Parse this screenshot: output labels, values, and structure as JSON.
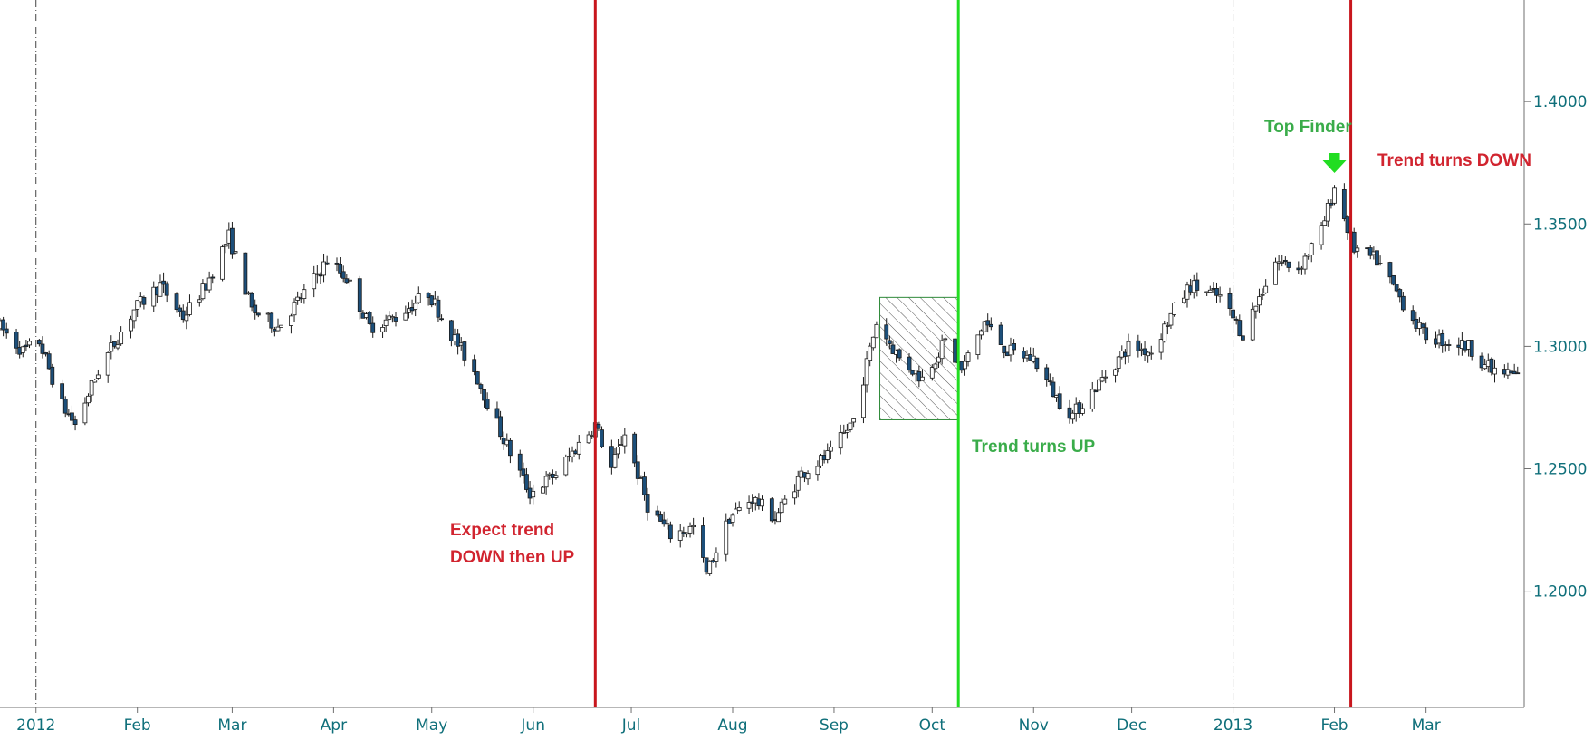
{
  "chart_data": {
    "type": "candlestick",
    "title": "",
    "xlabel": "",
    "ylabel": "",
    "x_range": [
      "2011-12-21",
      "2013-03-31"
    ],
    "ylim": [
      1.1525,
      1.4415
    ],
    "y_ticks": [
      1.2,
      1.25,
      1.3,
      1.35,
      1.4
    ],
    "y_tick_labels": [
      "1.2000",
      "1.2500",
      "1.3000",
      "1.3500",
      "1.4000"
    ],
    "y_axis_position": "right",
    "x_ticks": [
      {
        "date": "2012-01-01",
        "label": "2012"
      },
      {
        "date": "2012-02-01",
        "label": "Feb"
      },
      {
        "date": "2012-03-01",
        "label": "Mar"
      },
      {
        "date": "2012-04-01",
        "label": "Apr"
      },
      {
        "date": "2012-05-01",
        "label": "May"
      },
      {
        "date": "2012-06-01",
        "label": "Jun"
      },
      {
        "date": "2012-07-01",
        "label": "Jul"
      },
      {
        "date": "2012-08-01",
        "label": "Aug"
      },
      {
        "date": "2012-09-01",
        "label": "Sep"
      },
      {
        "date": "2012-10-01",
        "label": "Oct"
      },
      {
        "date": "2012-11-01",
        "label": "Nov"
      },
      {
        "date": "2012-12-01",
        "label": "Dec"
      },
      {
        "date": "2013-01-01",
        "label": "2013"
      },
      {
        "date": "2013-02-01",
        "label": "Feb"
      },
      {
        "date": "2013-03-01",
        "label": "Mar"
      }
    ],
    "year_separators": [
      "2012-01-01",
      "2013-01-01"
    ],
    "grid": false,
    "price_path": [
      [
        "2011-12-21",
        1.308
      ],
      [
        "2011-12-28",
        1.298
      ],
      [
        "2012-01-02",
        1.302
      ],
      [
        "2012-01-09",
        1.276
      ],
      [
        "2012-01-13",
        1.268
      ],
      [
        "2012-01-20",
        1.29
      ],
      [
        "2012-01-31",
        1.315
      ],
      [
        "2012-02-08",
        1.325
      ],
      [
        "2012-02-15",
        1.312
      ],
      [
        "2012-02-22",
        1.325
      ],
      [
        "2012-02-29",
        1.345
      ],
      [
        "2012-03-07",
        1.315
      ],
      [
        "2012-03-15",
        1.308
      ],
      [
        "2012-03-22",
        1.32
      ],
      [
        "2012-03-30",
        1.335
      ],
      [
        "2012-04-05",
        1.328
      ],
      [
        "2012-04-12",
        1.308
      ],
      [
        "2012-04-20",
        1.312
      ],
      [
        "2012-04-30",
        1.322
      ],
      [
        "2012-05-07",
        1.305
      ],
      [
        "2012-05-14",
        1.29
      ],
      [
        "2012-05-22",
        1.265
      ],
      [
        "2012-05-31",
        1.24
      ],
      [
        "2012-06-08",
        1.248
      ],
      [
        "2012-06-15",
        1.26
      ],
      [
        "2012-06-20",
        1.268
      ],
      [
        "2012-06-25",
        1.25
      ],
      [
        "2012-06-29",
        1.265
      ],
      [
        "2012-07-06",
        1.235
      ],
      [
        "2012-07-13",
        1.223
      ],
      [
        "2012-07-20",
        1.226
      ],
      [
        "2012-07-24",
        1.207
      ],
      [
        "2012-07-31",
        1.23
      ],
      [
        "2012-08-07",
        1.238
      ],
      [
        "2012-08-14",
        1.23
      ],
      [
        "2012-08-22",
        1.248
      ],
      [
        "2012-08-31",
        1.256
      ],
      [
        "2012-09-07",
        1.27
      ],
      [
        "2012-09-14",
        1.31
      ],
      [
        "2012-09-21",
        1.295
      ],
      [
        "2012-09-28",
        1.287
      ],
      [
        "2012-10-05",
        1.302
      ],
      [
        "2012-10-10",
        1.29
      ],
      [
        "2012-10-17",
        1.31
      ],
      [
        "2012-10-24",
        1.298
      ],
      [
        "2012-11-01",
        1.295
      ],
      [
        "2012-11-08",
        1.279
      ],
      [
        "2012-11-13",
        1.272
      ],
      [
        "2012-11-21",
        1.285
      ],
      [
        "2012-11-30",
        1.3
      ],
      [
        "2012-12-07",
        1.298
      ],
      [
        "2012-12-14",
        1.315
      ],
      [
        "2012-12-19",
        1.325
      ],
      [
        "2012-12-28",
        1.32
      ],
      [
        "2013-01-04",
        1.305
      ],
      [
        "2013-01-14",
        1.335
      ],
      [
        "2013-01-21",
        1.332
      ],
      [
        "2013-01-28",
        1.347
      ],
      [
        "2013-02-01",
        1.365
      ],
      [
        "2013-02-07",
        1.34
      ],
      [
        "2013-02-14",
        1.335
      ],
      [
        "2013-02-21",
        1.32
      ],
      [
        "2013-02-28",
        1.305
      ],
      [
        "2013-03-07",
        1.302
      ],
      [
        "2013-03-14",
        1.3
      ],
      [
        "2013-03-21",
        1.29
      ],
      [
        "2013-03-29",
        1.288
      ]
    ],
    "signal_lines": [
      {
        "date": "2012-06-20",
        "color": "#c8161d"
      },
      {
        "date": "2012-10-09",
        "color": "#22dd22"
      },
      {
        "date": "2013-02-06",
        "color": "#c8161d"
      }
    ],
    "hatched_box": {
      "date_start": "2012-09-15",
      "date_end": "2012-10-09",
      "y_top": 1.32,
      "y_bottom": 1.27
    },
    "marker": {
      "date": "2013-02-01",
      "y": 1.3745,
      "shape": "down-arrow",
      "color": "#22dd22"
    },
    "annotations": [
      {
        "lines": [
          "Expect trend",
          "DOWN then UP"
        ],
        "color": "red"
      },
      {
        "lines": [
          "Trend turns UP"
        ],
        "color": "green"
      },
      {
        "lines": [
          "Top Finder"
        ],
        "color": "green"
      },
      {
        "lines": [
          "Trend turns DOWN"
        ],
        "color": "red"
      }
    ]
  }
}
